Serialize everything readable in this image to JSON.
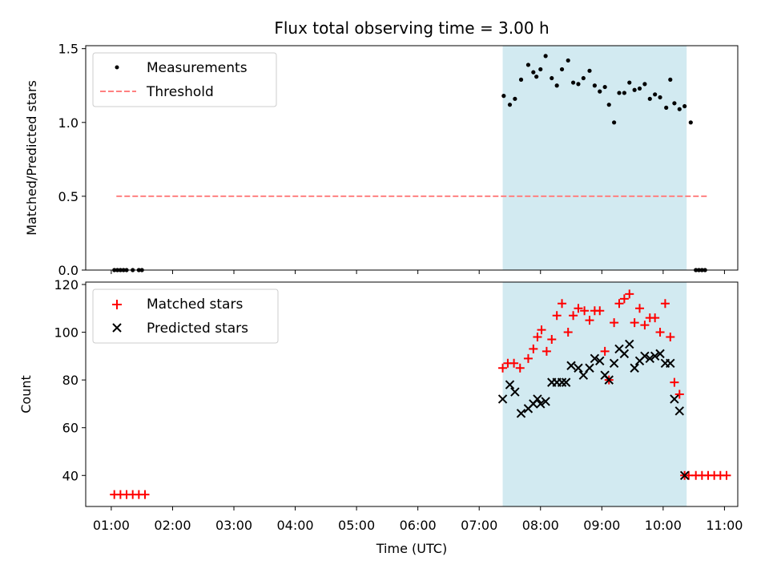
{
  "chart_data": [
    {
      "type": "scatter",
      "title": "Flux total observing time = 3.00 h",
      "ylabel": "Matched/Predicted stars",
      "xlabel": "",
      "x_ticks": [
        "01:00",
        "02:00",
        "03:00",
        "04:00",
        "05:00",
        "06:00",
        "07:00",
        "08:00",
        "09:00",
        "10:00",
        "11:00"
      ],
      "y_ticks": [
        "0.0",
        "0.5",
        "1.0",
        "1.5"
      ],
      "xlim": [
        "00:35",
        "11:13"
      ],
      "ylim": [
        0,
        1.52
      ],
      "shaded_span": [
        "07:23",
        "10:23"
      ],
      "shade_color": "#add8e6",
      "legend": {
        "location": "upper left",
        "entries": [
          "Measurements",
          "Threshold"
        ]
      },
      "threshold": {
        "name": "Threshold",
        "value": 0.5,
        "x_range": [
          "01:05",
          "10:43"
        ],
        "color": "#ff8080",
        "style": "dashed"
      },
      "series": [
        {
          "name": "Measurements",
          "color": "#000000",
          "marker": "dot",
          "x": [
            "01:03",
            "01:06",
            "01:09",
            "01:12",
            "01:15",
            "01:21",
            "01:27",
            "01:30",
            "07:24",
            "07:30",
            "07:35",
            "07:41",
            "07:48",
            "07:53",
            "07:56",
            "08:00",
            "08:05",
            "08:11",
            "08:16",
            "08:21",
            "08:27",
            "08:32",
            "08:37",
            "08:42",
            "08:48",
            "08:53",
            "08:58",
            "09:03",
            "09:07",
            "09:12",
            "09:17",
            "09:22",
            "09:27",
            "09:32",
            "09:37",
            "09:42",
            "09:47",
            "09:52",
            "09:57",
            "10:03",
            "10:07",
            "10:11",
            "10:16",
            "10:21",
            "10:27",
            "10:32",
            "10:35",
            "10:38",
            "10:41"
          ],
          "y": [
            0,
            0,
            0,
            0,
            0,
            0,
            0,
            0,
            1.18,
            1.12,
            1.16,
            1.29,
            1.39,
            1.34,
            1.31,
            1.36,
            1.45,
            1.3,
            1.25,
            1.36,
            1.42,
            1.27,
            1.26,
            1.3,
            1.35,
            1.25,
            1.21,
            1.24,
            1.12,
            1.0,
            1.2,
            1.2,
            1.27,
            1.22,
            1.23,
            1.26,
            1.16,
            1.19,
            1.17,
            1.1,
            1.29,
            1.13,
            1.09,
            1.11,
            1.0,
            0,
            0,
            0,
            0
          ]
        }
      ]
    },
    {
      "type": "scatter",
      "title": "",
      "ylabel": "Count",
      "xlabel": "Time (UTC)",
      "x_ticks": [
        "01:00",
        "02:00",
        "03:00",
        "04:00",
        "05:00",
        "06:00",
        "07:00",
        "08:00",
        "09:00",
        "10:00",
        "11:00"
      ],
      "y_ticks": [
        "40",
        "60",
        "80",
        "100",
        "120"
      ],
      "xlim": [
        "00:35",
        "11:13"
      ],
      "ylim": [
        27,
        121
      ],
      "shaded_span": [
        "07:23",
        "10:23"
      ],
      "shade_color": "#add8e6",
      "legend": {
        "location": "upper left",
        "entries": [
          "Matched stars",
          "Predicted stars"
        ]
      },
      "series": [
        {
          "name": "Matched stars",
          "color": "#ff0000",
          "marker": "plus",
          "x": [
            "01:03",
            "01:09",
            "01:15",
            "01:21",
            "01:27",
            "01:33",
            "07:23",
            "07:28",
            "07:34",
            "07:40",
            "07:48",
            "07:53",
            "07:57",
            "08:01",
            "08:06",
            "08:11",
            "08:16",
            "08:21",
            "08:27",
            "08:32",
            "08:37",
            "08:43",
            "08:48",
            "08:53",
            "08:58",
            "09:03",
            "09:07",
            "09:12",
            "09:17",
            "09:22",
            "09:27",
            "09:32",
            "09:37",
            "09:42",
            "09:47",
            "09:52",
            "09:57",
            "10:02",
            "10:07",
            "10:11",
            "10:16",
            "10:21",
            "10:25",
            "10:32",
            "10:38",
            "10:44",
            "10:50",
            "10:56",
            "11:02"
          ],
          "y": [
            32,
            32,
            32,
            32,
            32,
            32,
            85,
            87,
            87,
            85,
            89,
            93,
            98,
            101,
            92,
            97,
            107,
            112,
            100,
            107,
            110,
            109,
            105,
            109,
            109,
            92,
            80,
            104,
            112,
            114,
            116,
            104,
            110,
            103,
            106,
            106,
            100,
            112,
            98,
            79,
            74,
            40,
            40,
            40,
            40,
            40,
            40,
            40,
            40
          ]
        },
        {
          "name": "Predicted stars",
          "color": "#000000",
          "marker": "x",
          "x": [
            "07:23",
            "07:30",
            "07:35",
            "07:41",
            "07:48",
            "07:53",
            "07:57",
            "08:00",
            "08:05",
            "08:11",
            "08:16",
            "08:21",
            "08:25",
            "08:30",
            "08:37",
            "08:42",
            "08:48",
            "08:53",
            "08:58",
            "09:03",
            "09:07",
            "09:12",
            "09:17",
            "09:22",
            "09:27",
            "09:32",
            "09:37",
            "09:42",
            "09:47",
            "09:52",
            "09:57",
            "10:02",
            "10:07",
            "10:11",
            "10:16",
            "10:21"
          ],
          "y": [
            72,
            78,
            75,
            66,
            68,
            70,
            72,
            70,
            71,
            79,
            79,
            79,
            79,
            86,
            85,
            82,
            85,
            89,
            88,
            82,
            80,
            87,
            93,
            91,
            95,
            85,
            88,
            90,
            89,
            90,
            91,
            87,
            87,
            72,
            67,
            40
          ]
        }
      ]
    }
  ]
}
